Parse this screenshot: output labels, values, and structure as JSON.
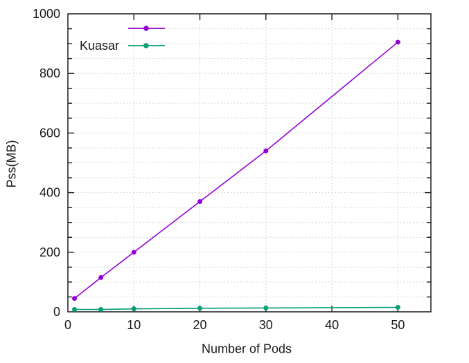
{
  "chart_data": {
    "type": "line",
    "title": "",
    "xlabel": "Number of Pods",
    "ylabel": "Pss(MB)",
    "xlim": [
      0,
      55
    ],
    "ylim": [
      0,
      1000
    ],
    "x_major_ticks": [
      0,
      10,
      20,
      30,
      40,
      50
    ],
    "y_major_ticks": [
      0,
      200,
      400,
      600,
      800,
      1000
    ],
    "y_minor_step": 50,
    "grid": true,
    "grid_style": "dotted",
    "legend_position": "top-left",
    "series": [
      {
        "name": "",
        "color": "#9400d3",
        "marker": "circle",
        "x": [
          1,
          5,
          10,
          20,
          30,
          50
        ],
        "values": [
          45,
          115,
          200,
          370,
          540,
          905
        ]
      },
      {
        "name": "Kuasar",
        "color": "#009e73",
        "marker": "circle",
        "x": [
          1,
          5,
          10,
          20,
          30,
          50
        ],
        "values": [
          8,
          8,
          10,
          12,
          13,
          15
        ]
      }
    ]
  },
  "colors": {
    "background": "#ffffff",
    "border": "#1a1a1a",
    "grid": "#c9c9c9",
    "text": "#1a1a1a",
    "series1": "#9400d3",
    "series2": "#009e73"
  }
}
